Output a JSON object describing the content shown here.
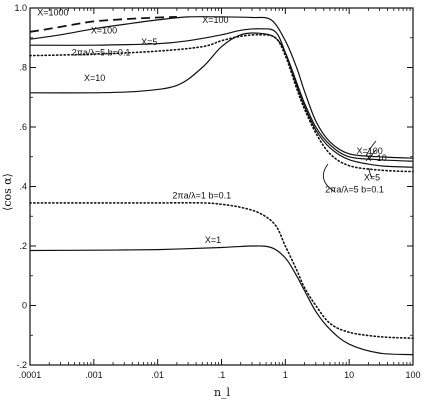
{
  "chart_data": {
    "type": "line",
    "xscale": "log",
    "xlabel": "n_l",
    "ylabel": "⟨cos α⟩",
    "xlim": [
      0.0001,
      100
    ],
    "ylim": [
      -0.2,
      1.0
    ],
    "x_tick_labels": [
      ".0001",
      ".001",
      ".01",
      ".1",
      "1",
      "10",
      "100"
    ],
    "x_ticks": [
      0.0001,
      0.001,
      0.01,
      0.1,
      1,
      10,
      100
    ],
    "y_tick_labels": [
      "-.2",
      "0",
      ".2",
      ".4",
      ".6",
      ".8",
      "1.0"
    ],
    "y_ticks": [
      -0.2,
      0,
      0.2,
      0.4,
      0.6,
      0.8,
      1.0
    ],
    "grid": false,
    "series": [
      {
        "name": "X=1000",
        "style": "dashed",
        "x": [
          0.0001,
          0.0002,
          0.0005,
          0.001,
          0.002,
          0.005,
          0.01,
          0.02
        ],
        "y": [
          0.92,
          0.93,
          0.945,
          0.955,
          0.96,
          0.965,
          0.968,
          0.97
        ]
      },
      {
        "name": "X=100",
        "style": "solid",
        "x": [
          0.0001,
          0.0003,
          0.001,
          0.003,
          0.01,
          0.03,
          0.1,
          0.3,
          0.6,
          1,
          1.5,
          2,
          3,
          5,
          10,
          30,
          100
        ],
        "y": [
          0.895,
          0.91,
          0.93,
          0.945,
          0.96,
          0.97,
          0.97,
          0.968,
          0.96,
          0.89,
          0.8,
          0.72,
          0.62,
          0.55,
          0.51,
          0.5,
          0.495
        ]
      },
      {
        "name": "X=5",
        "style": "solid",
        "x": [
          0.0001,
          0.001,
          0.01,
          0.03,
          0.1,
          0.2,
          0.4,
          0.7,
          1,
          1.5,
          2,
          3,
          5,
          10,
          30,
          100
        ],
        "y": [
          0.875,
          0.875,
          0.88,
          0.89,
          0.91,
          0.925,
          0.93,
          0.92,
          0.85,
          0.74,
          0.67,
          0.59,
          0.53,
          0.49,
          0.47,
          0.465
        ]
      },
      {
        "name": "X=10",
        "style": "solid",
        "x": [
          0.0001,
          0.001,
          0.005,
          0.02,
          0.05,
          0.1,
          0.2,
          0.4,
          0.7,
          1,
          1.5,
          2,
          3,
          5,
          10,
          30,
          100
        ],
        "y": [
          0.715,
          0.715,
          0.72,
          0.74,
          0.8,
          0.87,
          0.91,
          0.915,
          0.9,
          0.85,
          0.75,
          0.68,
          0.6,
          0.54,
          0.5,
          0.49,
          0.485
        ]
      },
      {
        "name": "2πa/λ=5 b=0.1",
        "style": "dotted",
        "x": [
          0.0001,
          0.001,
          0.01,
          0.05,
          0.1,
          0.2,
          0.4,
          0.7,
          1,
          1.5,
          2,
          3,
          5,
          10,
          30,
          100
        ],
        "y": [
          0.84,
          0.845,
          0.855,
          0.87,
          0.89,
          0.905,
          0.91,
          0.9,
          0.84,
          0.73,
          0.66,
          0.58,
          0.51,
          0.47,
          0.455,
          0.45
        ]
      },
      {
        "name": "2πa/λ=1 b=0.1",
        "style": "dotted",
        "x": [
          0.0001,
          0.001,
          0.01,
          0.05,
          0.1,
          0.2,
          0.4,
          0.7,
          1,
          1.5,
          2,
          3,
          5,
          10,
          30,
          100
        ],
        "y": [
          0.345,
          0.345,
          0.345,
          0.345,
          0.34,
          0.33,
          0.31,
          0.27,
          0.2,
          0.12,
          0.06,
          0.0,
          -0.06,
          -0.09,
          -0.105,
          -0.11
        ]
      },
      {
        "name": "X=1",
        "style": "solid",
        "x": [
          0.0001,
          0.001,
          0.01,
          0.1,
          0.3,
          0.6,
          1,
          1.5,
          2,
          3,
          5,
          10,
          30,
          100
        ],
        "y": [
          0.185,
          0.186,
          0.188,
          0.195,
          0.2,
          0.195,
          0.16,
          0.1,
          0.05,
          -0.02,
          -0.08,
          -0.13,
          -0.16,
          -0.165
        ]
      }
    ],
    "annotations": [
      {
        "text": "X=1000",
        "x": 0.00013,
        "y": 0.975
      },
      {
        "text": "X=100",
        "x": 0.0009,
        "y": 0.915
      },
      {
        "text": "X=100",
        "x": 0.05,
        "y": 0.95
      },
      {
        "text": "X=5",
        "x": 0.0055,
        "y": 0.875
      },
      {
        "text": "2πa/λ=5  b=0.1",
        "x": 0.00045,
        "y": 0.84
      },
      {
        "text": "X=10",
        "x": 0.0007,
        "y": 0.755
      },
      {
        "text": "2πa/λ=1  b=0.1",
        "x": 0.017,
        "y": 0.36
      },
      {
        "text": "X=1",
        "x": 0.055,
        "y": 0.21
      },
      {
        "text": "X=100",
        "x": 13,
        "y": 0.51
      },
      {
        "text": "X=10",
        "x": 18,
        "y": 0.485
      },
      {
        "text": "X=5",
        "x": 17,
        "y": 0.42
      },
      {
        "text": "2πa/λ=5  b=0.1",
        "x": 4.2,
        "y": 0.38
      }
    ]
  }
}
